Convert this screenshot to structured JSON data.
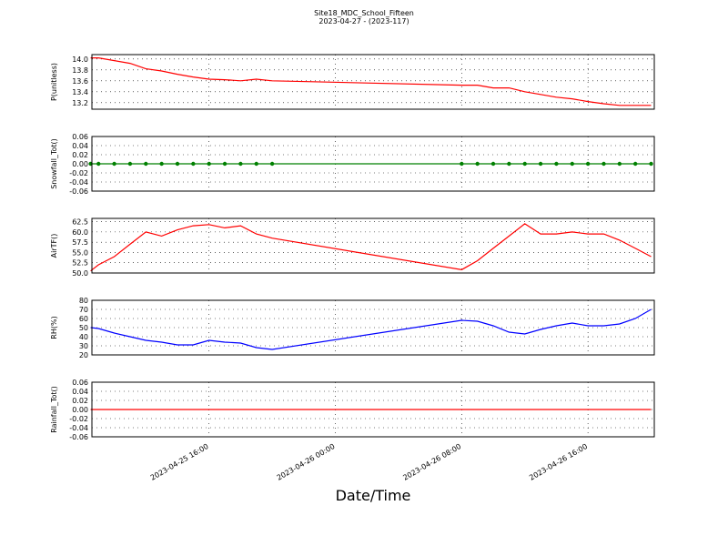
{
  "title": "Site18_MDC_School_Fifteen",
  "subtitle": "2023-04-27 - (2023-117)",
  "xlabel": "Date/Time",
  "chart_data": [
    {
      "type": "line",
      "ylabel": "P(unitless)",
      "x": [
        "2023-04-25 08:30",
        "2023-04-25 09:00",
        "2023-04-25 10:00",
        "2023-04-25 11:00",
        "2023-04-25 12:00",
        "2023-04-25 13:00",
        "2023-04-25 14:00",
        "2023-04-25 15:00",
        "2023-04-25 16:00",
        "2023-04-25 17:00",
        "2023-04-25 18:00",
        "2023-04-25 19:00",
        "2023-04-25 20:00",
        "2023-04-26 08:00",
        "2023-04-26 09:00",
        "2023-04-26 10:00",
        "2023-04-26 11:00",
        "2023-04-26 12:00",
        "2023-04-26 13:00",
        "2023-04-26 14:00",
        "2023-04-26 15:00",
        "2023-04-26 16:00",
        "2023-04-26 17:00",
        "2023-04-26 18:00",
        "2023-04-26 19:00",
        "2023-04-26 20:00"
      ],
      "xlim": [
        "2023-04-25 08:35",
        "2023-04-26 20:12"
      ],
      "xticks": [
        "2023-04-25 16:00",
        "2023-04-26 00:00",
        "2023-04-26 08:00",
        "2023-04-26 16:00"
      ],
      "ylim": [
        13.08,
        14.08
      ],
      "yticks": [
        13.2,
        13.4,
        13.6,
        13.8,
        {
          "value": 14,
          "label": "14.0"
        }
      ],
      "grid": true,
      "series": [
        {
          "color": "#ff0000",
          "marker": false,
          "values": [
            14.02,
            14.02,
            13.97,
            13.92,
            13.82,
            13.78,
            13.72,
            13.67,
            13.63,
            13.62,
            13.6,
            13.63,
            13.6,
            13.52,
            13.52,
            13.47,
            13.47,
            13.4,
            13.35,
            13.3,
            13.27,
            13.22,
            13.18,
            13.15,
            13.15,
            13.15
          ]
        }
      ]
    },
    {
      "type": "line",
      "ylabel": "Snowfall_Tot()",
      "x": [
        "2023-04-25 08:30",
        "2023-04-25 09:00",
        "2023-04-25 10:00",
        "2023-04-25 11:00",
        "2023-04-25 12:00",
        "2023-04-25 13:00",
        "2023-04-25 14:00",
        "2023-04-25 15:00",
        "2023-04-25 16:00",
        "2023-04-25 17:00",
        "2023-04-25 18:00",
        "2023-04-25 19:00",
        "2023-04-25 20:00",
        "2023-04-26 08:00",
        "2023-04-26 09:00",
        "2023-04-26 10:00",
        "2023-04-26 11:00",
        "2023-04-26 12:00",
        "2023-04-26 13:00",
        "2023-04-26 14:00",
        "2023-04-26 15:00",
        "2023-04-26 16:00",
        "2023-04-26 17:00",
        "2023-04-26 18:00",
        "2023-04-26 19:00",
        "2023-04-26 20:00"
      ],
      "xlim": [
        "2023-04-25 08:35",
        "2023-04-26 20:12"
      ],
      "xticks": [
        "2023-04-25 16:00",
        "2023-04-26 00:00",
        "2023-04-26 08:00",
        "2023-04-26 16:00"
      ],
      "ylim": [
        -0.06,
        0.06
      ],
      "yticks": [
        -0.06,
        -0.04,
        -0.02,
        {
          "value": 0,
          "label": "0.00"
        },
        0.02,
        0.04,
        0.06
      ],
      "grid": true,
      "series": [
        {
          "color": "#008000",
          "marker": true,
          "values": [
            0,
            0,
            0,
            0,
            0,
            0,
            0,
            0,
            0,
            0,
            0,
            0,
            0,
            0,
            0,
            0,
            0,
            0,
            0,
            0,
            0,
            0,
            0,
            0,
            0,
            0
          ]
        }
      ]
    },
    {
      "type": "line",
      "ylabel": "AirTF()",
      "x": [
        "2023-04-25 08:30",
        "2023-04-25 09:00",
        "2023-04-25 10:00",
        "2023-04-25 11:00",
        "2023-04-25 12:00",
        "2023-04-25 13:00",
        "2023-04-25 14:00",
        "2023-04-25 15:00",
        "2023-04-25 16:00",
        "2023-04-25 17:00",
        "2023-04-25 18:00",
        "2023-04-25 19:00",
        "2023-04-25 20:00",
        "2023-04-26 08:00",
        "2023-04-26 09:00",
        "2023-04-26 10:00",
        "2023-04-26 11:00",
        "2023-04-26 12:00",
        "2023-04-26 13:00",
        "2023-04-26 14:00",
        "2023-04-26 15:00",
        "2023-04-26 16:00",
        "2023-04-26 17:00",
        "2023-04-26 18:00",
        "2023-04-26 19:00",
        "2023-04-26 20:00"
      ],
      "xlim": [
        "2023-04-25 08:35",
        "2023-04-26 20:12"
      ],
      "xticks": [
        "2023-04-25 16:00",
        "2023-04-26 00:00",
        "2023-04-26 08:00",
        "2023-04-26 16:00"
      ],
      "ylim": [
        50,
        63.3
      ],
      "yticks": [
        {
          "value": 50,
          "label": "50.0"
        },
        52.5,
        {
          "value": 55,
          "label": "55.0"
        },
        57.5,
        {
          "value": 60,
          "label": "60.0"
        },
        62.5
      ],
      "grid": true,
      "series": [
        {
          "color": "#ff0000",
          "marker": false,
          "values": [
            50.5,
            52,
            54,
            57,
            60,
            59,
            60.5,
            61.5,
            61.8,
            61,
            61.5,
            59.5,
            58.5,
            50.8,
            53,
            56,
            59,
            62,
            59.5,
            59.5,
            60,
            59.5,
            59.5,
            58,
            56,
            54
          ]
        }
      ]
    },
    {
      "type": "line",
      "ylabel": "RH(%)",
      "x": [
        "2023-04-25 08:30",
        "2023-04-25 09:00",
        "2023-04-25 10:00",
        "2023-04-25 11:00",
        "2023-04-25 12:00",
        "2023-04-25 13:00",
        "2023-04-25 14:00",
        "2023-04-25 15:00",
        "2023-04-25 16:00",
        "2023-04-25 17:00",
        "2023-04-25 18:00",
        "2023-04-25 19:00",
        "2023-04-25 20:00",
        "2023-04-26 08:00",
        "2023-04-26 09:00",
        "2023-04-26 10:00",
        "2023-04-26 11:00",
        "2023-04-26 12:00",
        "2023-04-26 13:00",
        "2023-04-26 14:00",
        "2023-04-26 15:00",
        "2023-04-26 16:00",
        "2023-04-26 17:00",
        "2023-04-26 18:00",
        "2023-04-26 19:00",
        "2023-04-26 20:00"
      ],
      "xlim": [
        "2023-04-25 08:35",
        "2023-04-26 20:12"
      ],
      "xticks": [
        "2023-04-25 16:00",
        "2023-04-26 00:00",
        "2023-04-26 08:00",
        "2023-04-26 16:00"
      ],
      "ylim": [
        20,
        80
      ],
      "yticks": [
        20,
        30,
        40,
        50,
        60,
        70,
        80
      ],
      "grid": true,
      "series": [
        {
          "color": "#0000ff",
          "marker": false,
          "values": [
            50,
            49,
            44,
            40,
            36,
            34,
            31,
            31,
            36,
            34,
            33,
            28,
            26,
            58,
            57,
            52,
            45,
            43,
            48,
            52,
            55,
            52,
            52,
            54,
            60,
            70
          ]
        }
      ]
    },
    {
      "type": "line",
      "ylabel": "Rainfall_Tot()",
      "x": [
        "2023-04-25 08:30",
        "2023-04-25 09:00",
        "2023-04-25 10:00",
        "2023-04-25 11:00",
        "2023-04-25 12:00",
        "2023-04-25 13:00",
        "2023-04-25 14:00",
        "2023-04-25 15:00",
        "2023-04-25 16:00",
        "2023-04-25 17:00",
        "2023-04-25 18:00",
        "2023-04-25 19:00",
        "2023-04-25 20:00",
        "2023-04-26 08:00",
        "2023-04-26 09:00",
        "2023-04-26 10:00",
        "2023-04-26 11:00",
        "2023-04-26 12:00",
        "2023-04-26 13:00",
        "2023-04-26 14:00",
        "2023-04-26 15:00",
        "2023-04-26 16:00",
        "2023-04-26 17:00",
        "2023-04-26 18:00",
        "2023-04-26 19:00",
        "2023-04-26 20:00"
      ],
      "xlim": [
        "2023-04-25 08:35",
        "2023-04-26 20:12"
      ],
      "xticks": [
        "2023-04-25 16:00",
        "2023-04-26 00:00",
        "2023-04-26 08:00",
        "2023-04-26 16:00"
      ],
      "ylim": [
        -0.06,
        0.06
      ],
      "yticks": [
        -0.06,
        -0.04,
        -0.02,
        {
          "value": 0,
          "label": "0.00"
        },
        0.02,
        0.04,
        0.06
      ],
      "grid": true,
      "series": [
        {
          "color": "#ff0000",
          "marker": false,
          "values": [
            0,
            0,
            0,
            0,
            0,
            0,
            0,
            0,
            0,
            0,
            0,
            0,
            0,
            0,
            0,
            0,
            0,
            0,
            0,
            0,
            0,
            0,
            0,
            0,
            0,
            0
          ]
        }
      ]
    }
  ]
}
